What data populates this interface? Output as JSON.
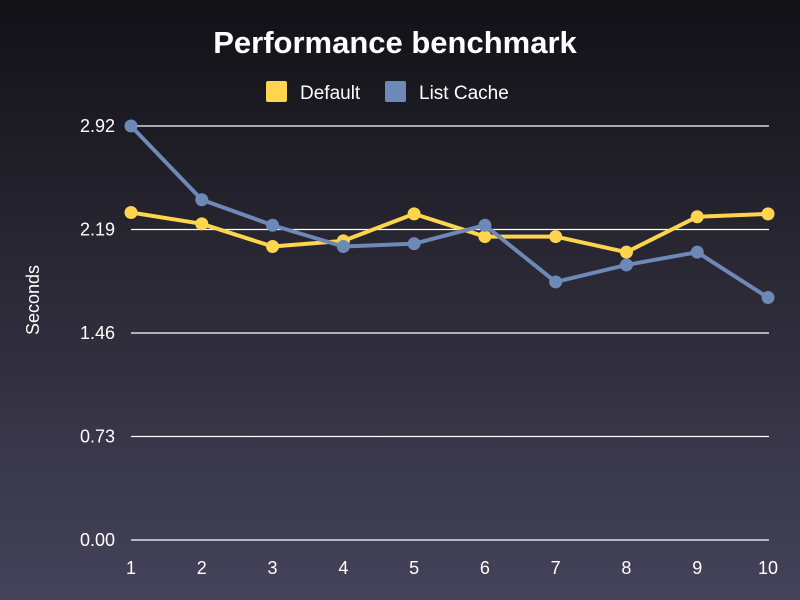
{
  "chart_data": {
    "type": "line",
    "title": "Performance benchmark",
    "xlabel": "",
    "ylabel": "Seconds",
    "x": [
      1,
      2,
      3,
      4,
      5,
      6,
      7,
      8,
      9,
      10
    ],
    "x_tick_labels": [
      "1",
      "2",
      "3",
      "4",
      "5",
      "6",
      "7",
      "8",
      "9",
      "10"
    ],
    "y_ticks": [
      0.0,
      0.73,
      1.46,
      2.19,
      2.92
    ],
    "y_tick_labels": [
      "0.00",
      "0.73",
      "1.46",
      "2.19",
      "2.92"
    ],
    "ylim": [
      0,
      2.92
    ],
    "xlim": [
      1,
      10
    ],
    "grid": "horizontal",
    "legend_position": "top-center",
    "series": [
      {
        "name": "Default",
        "color": "#ffd54f",
        "values": [
          2.31,
          2.23,
          2.07,
          2.11,
          2.3,
          2.14,
          2.14,
          2.03,
          2.28,
          2.3
        ]
      },
      {
        "name": "List Cache",
        "color": "#6d89b8",
        "values": [
          2.92,
          2.4,
          2.22,
          2.07,
          2.09,
          2.22,
          1.82,
          1.94,
          2.03,
          1.71
        ]
      }
    ]
  }
}
